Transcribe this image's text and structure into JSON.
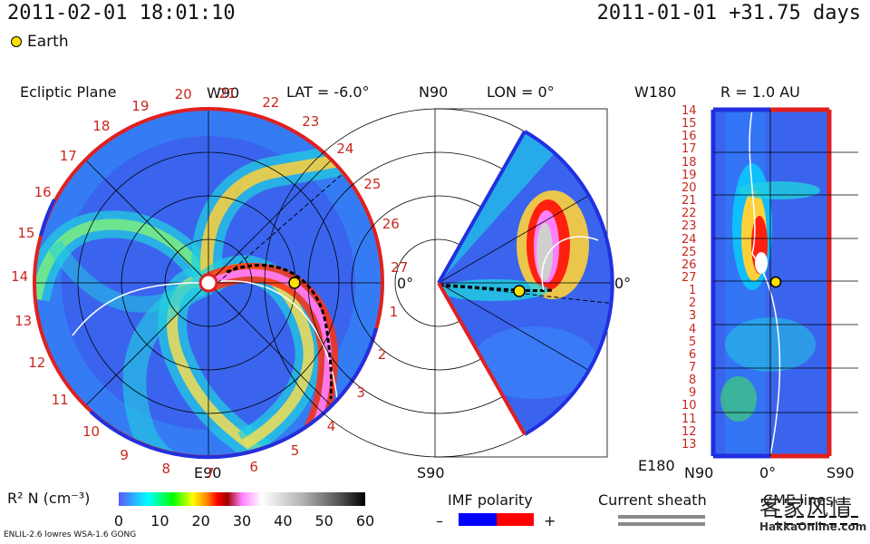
{
  "header": {
    "timestamp": "2011-02-01 18:01:10",
    "elapsed": "2011-01-01 +31.75 days",
    "earth_label": "Earth"
  },
  "panels": {
    "ecliptic": {
      "title": "Ecliptic Plane",
      "lat": "LAT = -6.0°",
      "top": "W90",
      "bottom": "E90",
      "right": "0°",
      "rotation_labels": [
        "20",
        "21",
        "22",
        "23",
        "24",
        "25",
        "26",
        "27",
        "1",
        "2",
        "3",
        "4",
        "5",
        "6",
        "7",
        "8",
        "9",
        "10",
        "11",
        "12",
        "13",
        "14",
        "15",
        "16",
        "17",
        "18",
        "19"
      ]
    },
    "meridional": {
      "lon": "LON = 0°",
      "top": "N90",
      "bottom": "S90",
      "right": "0°"
    },
    "radial": {
      "r": "R = 1.0 AU",
      "top": "W180",
      "bottom": "E180",
      "xlabels": [
        "N90",
        "0°",
        "S90"
      ],
      "rows": [
        "14",
        "15",
        "16",
        "17",
        "18",
        "19",
        "20",
        "21",
        "22",
        "23",
        "24",
        "25",
        "26",
        "27",
        "1",
        "2",
        "3",
        "4",
        "5",
        "6",
        "7",
        "8",
        "9",
        "10",
        "11",
        "12",
        "13"
      ]
    }
  },
  "colorbar": {
    "label": "R² N (cm⁻³)",
    "ticks": [
      "0",
      "10",
      "20",
      "30",
      "40",
      "50",
      "60"
    ],
    "range": [
      0,
      60
    ],
    "stops": [
      "#5a5aff",
      "#00ffff",
      "#00ff00",
      "#ffff00",
      "#ff8000",
      "#ff0000",
      "#a00000",
      "#ff80ff",
      "#ffffff",
      "#c0c0c0",
      "#808080",
      "#000000"
    ]
  },
  "imf": {
    "title": "IMF polarity",
    "minus": "–",
    "plus": "+",
    "neg_color": "#0000ff",
    "pos_color": "#ff0000"
  },
  "sheath": {
    "title": "Current sheath"
  },
  "cme": {
    "title": "CME lines"
  },
  "footer": "ENLIL-2.6 lowres WSA-1.6 GONG",
  "watermark": {
    "cjk": "客家风情",
    "text": "HakkaOnline.com"
  },
  "chart_data": {
    "type": "heatmap",
    "title": "Ecliptic Plane / LON = 0° / R = 1.0 AU",
    "quantity": "R² N (cm⁻³)",
    "colorbar_range": [
      0,
      60
    ],
    "panels": [
      {
        "name": "Ecliptic Plane",
        "lat_deg": -6.0
      },
      {
        "name": "Meridional",
        "lon_deg": 0
      },
      {
        "name": "Radial shell",
        "r_au": 1.0
      }
    ]
  }
}
